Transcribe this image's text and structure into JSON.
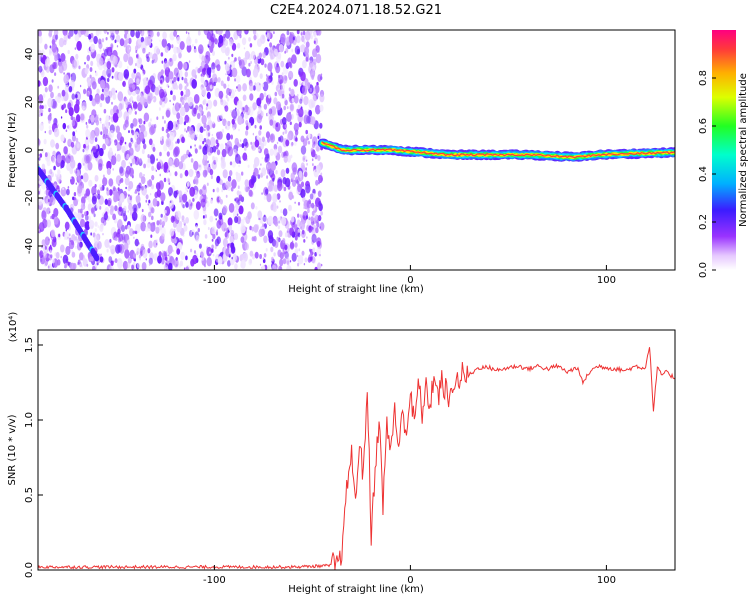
{
  "title": "C2E4.2024.071.18.52.G21",
  "chart_data": [
    {
      "type": "heatmap",
      "title": "C2E4.2024.071.18.52.G21",
      "xlabel": "Height of straight line (km)",
      "ylabel": "Frequency (Hz)",
      "xlim": [
        -190,
        135
      ],
      "ylim": [
        -50,
        50
      ],
      "x_ticks": [
        -100,
        0,
        100
      ],
      "y_ticks": [
        -40,
        -20,
        0,
        20,
        40
      ],
      "colorbar": {
        "label": "Normalized spectral amplitude",
        "range": [
          0.0,
          1.0
        ],
        "ticks": [
          0.0,
          0.2,
          0.4,
          0.6,
          0.8
        ],
        "colormap": "rainbow"
      },
      "features": {
        "noise_region_x": [
          -190,
          -45
        ],
        "signal_line_x": [
          -45,
          135
        ],
        "signal_line_frequency": [
          [
            -45,
            3
          ],
          [
            -35,
            0
          ],
          [
            -10,
            0
          ],
          [
            20,
            -2
          ],
          [
            60,
            -2
          ],
          [
            85,
            -3
          ],
          [
            95,
            -2
          ],
          [
            135,
            -1
          ]
        ],
        "streak": [
          [
            -190,
            -8
          ],
          [
            -175,
            -25
          ],
          [
            -160,
            -45
          ]
        ]
      }
    },
    {
      "type": "line",
      "xlabel": "Height of straight line (km)",
      "ylabel": "SNR (10 * v/v)",
      "y_multiplier": "(x10⁴)",
      "xlim": [
        -190,
        135
      ],
      "ylim": [
        0,
        1.6
      ],
      "x_ticks": [
        -100,
        0,
        100
      ],
      "y_ticks": [
        0.0,
        0.5,
        1.0,
        1.5
      ],
      "color": "#ee3333",
      "series": [
        {
          "x": [
            -190,
            -150,
            -100,
            -60,
            -40,
            -36,
            -34,
            -32,
            -30,
            -28,
            -26,
            -24,
            -22,
            -20,
            -18,
            -16,
            -14,
            -12,
            -10,
            -8,
            -6,
            -4,
            -2,
            0,
            2,
            4,
            6,
            8,
            10,
            12,
            14,
            16,
            18,
            20,
            22,
            24,
            26,
            28,
            30,
            35,
            40,
            45,
            50,
            55,
            60,
            65,
            70,
            75,
            80,
            85,
            88,
            92,
            96,
            100,
            105,
            110,
            115,
            118,
            120,
            122,
            124,
            126,
            128,
            130,
            135
          ],
          "values": [
            0.02,
            0.02,
            0.02,
            0.02,
            0.03,
            0.05,
            0.25,
            0.6,
            0.8,
            0.4,
            0.9,
            0.6,
            1.25,
            0.2,
            0.7,
            1.0,
            0.45,
            0.95,
            0.8,
            1.1,
            0.75,
            1.1,
            0.9,
            1.2,
            0.95,
            1.25,
            1.05,
            1.2,
            1.1,
            1.3,
            1.15,
            1.25,
            1.2,
            1.1,
            1.28,
            1.25,
            1.3,
            1.3,
            1.3,
            1.35,
            1.35,
            1.33,
            1.35,
            1.36,
            1.34,
            1.36,
            1.34,
            1.36,
            1.32,
            1.35,
            1.25,
            1.33,
            1.36,
            1.35,
            1.34,
            1.33,
            1.36,
            1.35,
            1.35,
            1.5,
            1.06,
            1.35,
            1.3,
            1.32,
            1.28
          ]
        }
      ]
    }
  ]
}
